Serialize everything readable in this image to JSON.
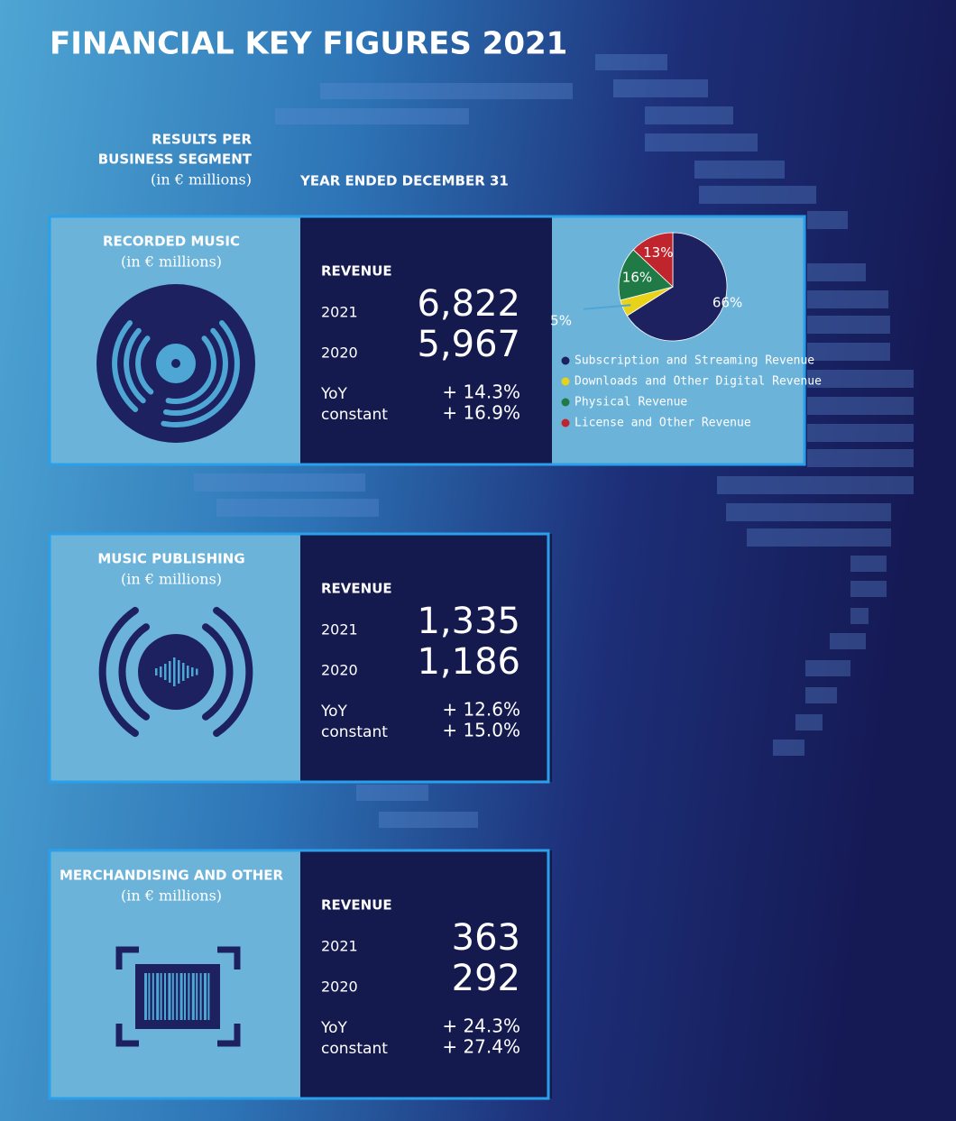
{
  "title": "FINANCIAL KEY FIGURES 2021",
  "header": {
    "segment_label": [
      "RESULTS PER",
      "BUSINESS SEGMENT"
    ],
    "unit": "(in € millions)",
    "period": "YEAR ENDED DECEMBER 31"
  },
  "segments": [
    {
      "name": "RECORDED MUSIC",
      "unit": "(in € millions)",
      "metric": "REVENUE",
      "rows": [
        {
          "label": "2021",
          "value": "6,822"
        },
        {
          "label": "2020",
          "value": "5,967"
        }
      ],
      "growth": [
        {
          "label": "YoY",
          "value": "+ 14.3%"
        },
        {
          "label": "constant",
          "value": "+ 16.9%"
        }
      ]
    },
    {
      "name": "MUSIC PUBLISHING",
      "unit": "(in € millions)",
      "metric": "REVENUE",
      "rows": [
        {
          "label": "2021",
          "value": "1,335"
        },
        {
          "label": "2020",
          "value": "1,186"
        }
      ],
      "growth": [
        {
          "label": "YoY",
          "value": "+ 12.6%"
        },
        {
          "label": "constant",
          "value": "+ 15.0%"
        }
      ]
    },
    {
      "name": "MERCHANDISING AND OTHER",
      "unit": "(in € millions)",
      "metric": "REVENUE",
      "rows": [
        {
          "label": "2021",
          "value": "363"
        },
        {
          "label": "2020",
          "value": "292"
        }
      ],
      "growth": [
        {
          "label": "YoY",
          "value": "+ 24.3%"
        },
        {
          "label": "constant",
          "value": "+ 27.4%"
        }
      ]
    }
  ],
  "chart_data": {
    "type": "pie",
    "categories": [
      "Subscription and Streaming Revenue",
      "Downloads and Other Digital Revenue",
      "Physical Revenue",
      "License and Other Revenue"
    ],
    "values": [
      66,
      5,
      16,
      13
    ],
    "value_labels": [
      "66%",
      "5%",
      "16%",
      "13%"
    ],
    "colors": [
      "#1d2160",
      "#e8d21a",
      "#1f7a45",
      "#c0252d"
    ],
    "legend": "bottom"
  }
}
